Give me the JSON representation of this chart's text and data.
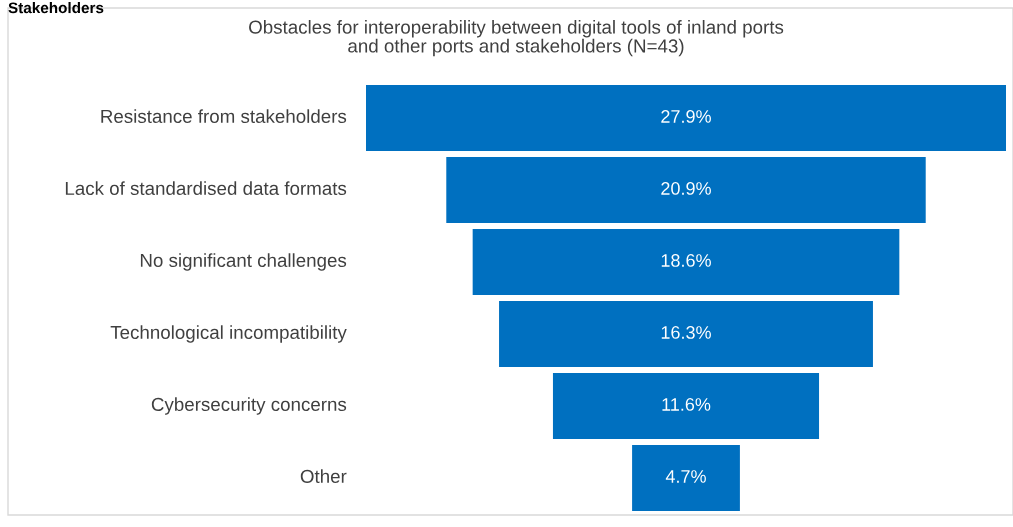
{
  "chart_data": {
    "type": "other",
    "title": "Obstacles for interoperability between digital tools of inland ports\nand other ports and stakeholders (N=43)",
    "annotations": [
      "Stakeholders"
    ],
    "categories": [
      "Resistance from stakeholders",
      "Lack of standardised data formats",
      "No significant challenges",
      "Technological incompatibility",
      "Cybersecurity concerns",
      "Other"
    ],
    "values": [
      27.9,
      20.9,
      18.6,
      16.3,
      11.6,
      4.7
    ],
    "value_labels": [
      "27.9%",
      "20.9%",
      "18.6%",
      "16.3%",
      "11.6%",
      "4.7%"
    ],
    "color": "#0070c0"
  }
}
